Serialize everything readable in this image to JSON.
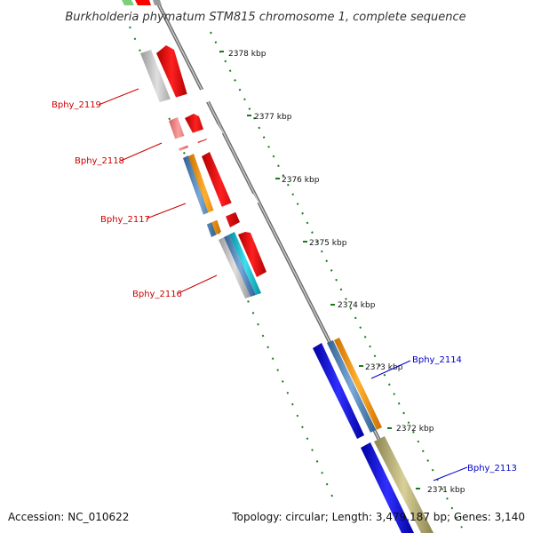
{
  "title": "Burkholderia phymatum STM815 chromosome 1, complete sequence",
  "accession_text": "Accession: NC_010622",
  "topology_text": "Topology: circular; Length: 3,479,187 bp; Genes: 3,140",
  "ticks": [
    "2378 kbp",
    "2377 kbp",
    "2376 kbp",
    "2375 kbp",
    "2374 kbp",
    "2373 kbp",
    "2372 kbp",
    "2371 kbp"
  ],
  "genes": {
    "g2119": "Bphy_2119",
    "g2118": "Bphy_2118",
    "g2117": "Bphy_2117",
    "g2116": "Bphy_2116",
    "g2114": "Bphy_2114",
    "g2113": "Bphy_2113"
  },
  "colors": {
    "red": "#ff0000",
    "pink": "#f08080",
    "grey": "#c8c8c8",
    "steelblue": "#5b8ec8",
    "orange": "#ff9900",
    "cyan": "#19c8d8",
    "blue": "#0000ff",
    "khaki": "#b8b070",
    "backbone": "#777777",
    "tick_green": "#1a7a1a",
    "label_red": "#cc0000",
    "label_blue": "#0000cc"
  }
}
